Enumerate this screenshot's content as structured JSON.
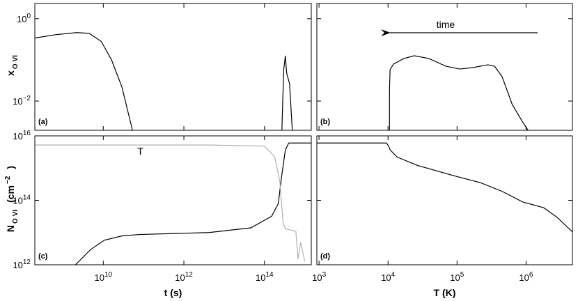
{
  "chart_data": [
    {
      "type": "line",
      "panel_label": "(a)",
      "ylabel": [
        {
          "text": "x"
        },
        {
          "text": "O VI",
          "script": "sub"
        }
      ],
      "log_x": true,
      "log_y": true,
      "xlim": [
        200000000.0,
        1450000000000000.0
      ],
      "ylim": [
        0.00195,
        2.34
      ],
      "xticks": [
        10000000000.0,
        1000000000000.0,
        100000000000000.0
      ],
      "yticks": [
        {
          "value": 1,
          "label": "10",
          "exponent": "0"
        },
        {
          "value": 0.01,
          "label": "10",
          "exponent": "−2"
        }
      ],
      "series": [
        {
          "color": "#000000",
          "x": [
            200000000.0,
            680000000.0,
            2200000000.0,
            4500000000.0,
            8900000000.0,
            16000000000.0,
            29000000000.0,
            53000000000.0,
            null,
            270000000000000.0,
            300000000000000.0,
            330000000000000.0,
            355000000000000.0,
            420000000000000.0,
            490000000000000.0
          ],
          "values": [
            0.34,
            0.41,
            0.46,
            0.44,
            0.28,
            0.1,
            0.022,
            0.00195,
            null,
            0.00195,
            0.058,
            0.126,
            0.048,
            0.026,
            0.00195
          ]
        }
      ]
    },
    {
      "type": "line",
      "panel_label": "(b)",
      "annotation": "time",
      "log_x": true,
      "log_y": true,
      "xlim": [
        930.0,
        4700000.0
      ],
      "ylim": [
        0.00195,
        2.34
      ],
      "xticks": [
        1000.0,
        10000.0,
        100000.0,
        1000000.0
      ],
      "yticks": [
        1,
        0.01
      ],
      "series": [
        {
          "color": "#000000",
          "x": [
            10500.0,
            10500.0,
            10700.0,
            12000.0,
            17000.0,
            24000.0,
            39000.0,
            69000.0,
            110000.0,
            170000.0,
            280000.0,
            350000.0,
            450000.0,
            630000.0,
            890000.0,
            1070000.0
          ],
          "values": [
            0.00195,
            0.018,
            0.058,
            0.079,
            0.108,
            0.126,
            0.108,
            0.07,
            0.06,
            0.065,
            0.076,
            0.07,
            0.039,
            0.0083,
            0.0031,
            0.00195
          ]
        }
      ]
    },
    {
      "type": "line",
      "panel_label": "(c)",
      "xlabel": "t  (s)",
      "ylabel": [
        {
          "text": "N"
        },
        {
          "text": "O VI",
          "script": "sub"
        },
        {
          "text": "(cm"
        },
        {
          "text": "−2",
          "script": "super"
        },
        {
          "text": ")"
        }
      ],
      "log_x": true,
      "log_y": true,
      "xlim": [
        200000000.0,
        1450000000000000.0
      ],
      "ylim": [
        1000000000000.0,
        1e+16
      ],
      "xticks": [
        {
          "value": 10000000000.0,
          "label": "10",
          "exponent": "10"
        },
        {
          "value": 1000000000000.0,
          "label": "10",
          "exponent": "12"
        },
        {
          "value": 100000000000000.0,
          "label": "10",
          "exponent": "14"
        }
      ],
      "yticks": [
        {
          "value": 1000000000000.0,
          "label": "10",
          "exponent": "12"
        },
        {
          "value": 100000000000000.0,
          "label": "10",
          "exponent": "14"
        },
        {
          "value": 1e+16,
          "label": "10",
          "exponent": "16"
        }
      ],
      "series": [
        {
          "color": "#000000",
          "x": [
            2040000000.0,
            4900000000.0,
            10700000000.0,
            29500000000.0,
            79000000000.0,
            4200000000000.0,
            46000000000000.0,
            150000000000000.0,
            220000000000000.0,
            270000000000000.0,
            330000000000000.0,
            400000000000000.0,
            1450000000000000.0
          ],
          "values": [
            1000000000000.0,
            3000000000000.0,
            5800000000000.0,
            7900000000000.0,
            8700000000000.0,
            10000000000000.0,
            14000000000000.0,
            32000000000000.0,
            79000000000000.0,
            630000000000000.0,
            3700000000000000.0,
            6000000000000000.0,
            6000000000000000.0
          ]
        },
        {
          "name": "T",
          "color": "#b0b0b0",
          "x": [
            200000000.0,
            4200000000000.0,
            100000000000000.0,
            180000000000000.0,
            240000000000000.0,
            290000000000000.0,
            330000000000000.0,
            600000000000000.0,
            680000000000000.0,
            790000000000000.0,
            1000000000000000.0
          ],
          "values": [
            5200000000000000.0,
            5200000000000000.0,
            4800000000000000.0,
            2200000000000000.0,
            390000000000000.0,
            20000000000000.0,
            13000000000000.0,
            11000000000000.0,
            1500000000000.0,
            4900000000000.0,
            1300000000000.0
          ]
        }
      ]
    },
    {
      "type": "line",
      "panel_label": "(d)",
      "xlabel": "T  (K)",
      "log_x": true,
      "log_y": true,
      "xlim": [
        930.0,
        4700000.0
      ],
      "ylim": [
        1000000000000.0,
        1e+16
      ],
      "xticks": [
        {
          "value": 1000.0,
          "label": "10",
          "exponent": "3"
        },
        {
          "value": 10000.0,
          "label": "10",
          "exponent": "4"
        },
        {
          "value": 100000.0,
          "label": "10",
          "exponent": "5"
        },
        {
          "value": 1000000.0,
          "label": "10",
          "exponent": "6"
        }
      ],
      "yticks": [
        1000000000000.0,
        100000000000000.0,
        1e+16
      ],
      "series": [
        {
          "color": "#000000",
          "x": [
            930.0,
            9500.0,
            10200.0,
            10700.0,
            13500.0,
            27000.0,
            87000.0,
            220000.0,
            450000.0,
            890000.0,
            1800000.0,
            2800000.0,
            4700000.0
          ],
          "values": [
            6000000000000000.0,
            6000000000000000.0,
            4800000000000000.0,
            3700000000000000.0,
            2200000000000000.0,
            1200000000000000.0,
            590000000000000.0,
            350000000000000.0,
            190000000000000.0,
            89000000000000.0,
            59000000000000.0,
            30000000000000.0,
            10500000000000.0
          ]
        }
      ]
    }
  ]
}
